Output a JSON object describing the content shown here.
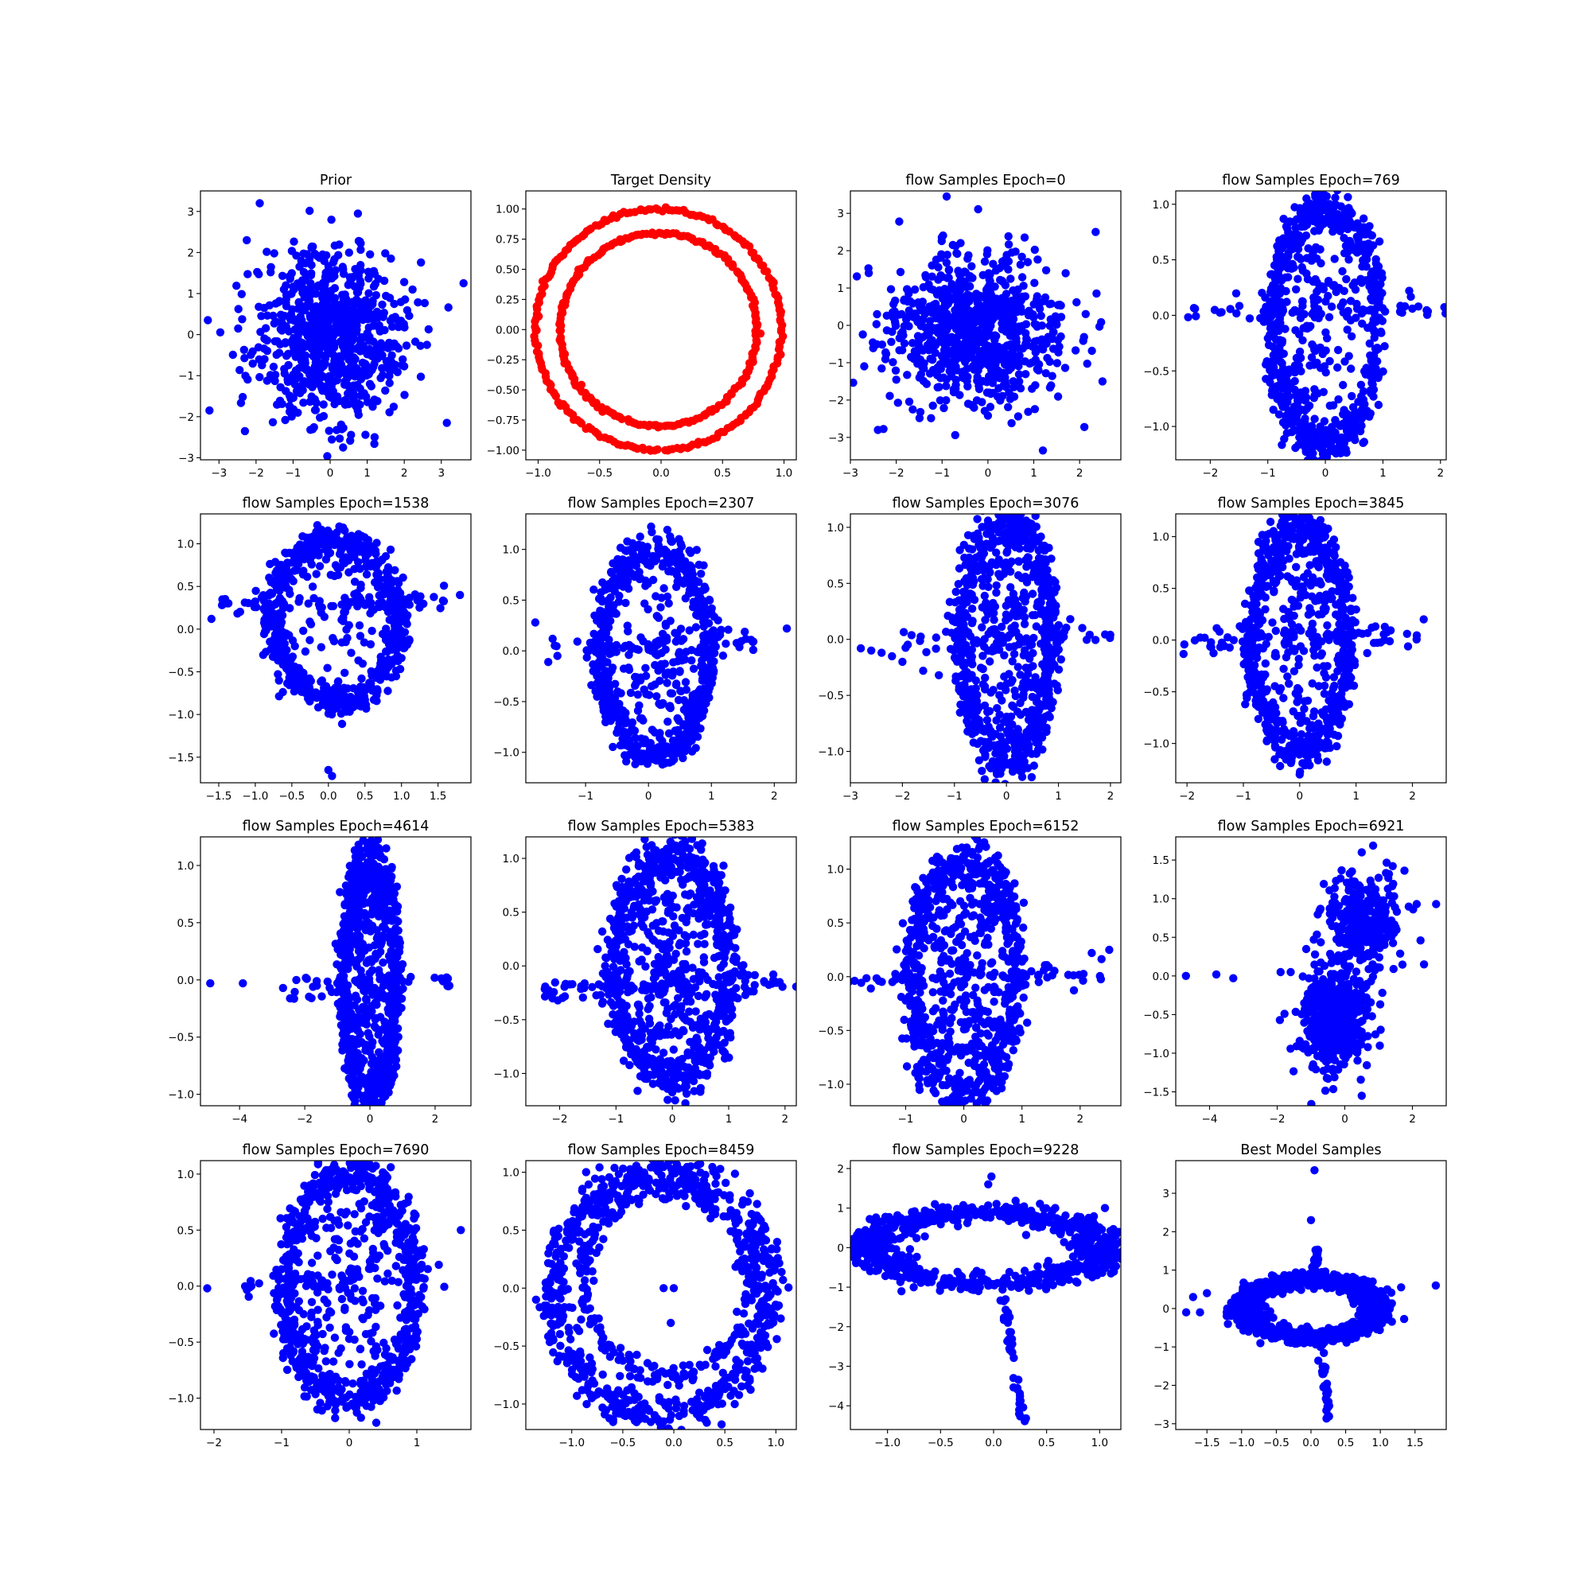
{
  "figure": {
    "point_colors": {
      "blue": "#0000ff",
      "red": "#ff0000"
    }
  },
  "chart_data": [
    {
      "type": "scatter",
      "title": "Prior",
      "color": "#0000ff",
      "xlim": [
        -3.5,
        3.8
      ],
      "ylim": [
        -3.05,
        3.5
      ],
      "xticks": [
        -3,
        -2,
        -1,
        0,
        1,
        2,
        3
      ],
      "yticks": [
        -3,
        -2,
        -1,
        0,
        1,
        2,
        3
      ],
      "distribution": {
        "kind": "gaussian",
        "n": 800,
        "cx": 0.0,
        "cy": 0.0,
        "sx": 1.0,
        "sy": 1.0
      },
      "points": [
        [
          -1.9,
          3.2
        ],
        [
          0.75,
          2.95
        ],
        [
          3.6,
          1.25
        ],
        [
          0.35,
          -2.75
        ],
        [
          3.15,
          -2.15
        ],
        [
          -2.3,
          -2.35
        ],
        [
          -3.3,
          0.35
        ],
        [
          -2.25,
          2.3
        ],
        [
          1.2,
          -2.5
        ]
      ]
    },
    {
      "type": "scatter",
      "title": "Target Density",
      "color": "#ff0000",
      "xlim": [
        -1.1,
        1.1
      ],
      "ylim": [
        -1.08,
        1.15
      ],
      "xticks": [
        -1.0,
        -0.5,
        0.0,
        0.5,
        1.0
      ],
      "yticks": [
        -1.0,
        -0.75,
        -0.5,
        -0.25,
        0.0,
        0.25,
        0.5,
        0.75,
        1.0
      ],
      "distribution": {
        "kind": "two-rings",
        "radii": [
          1.0,
          0.8
        ],
        "n_per_ring": 220,
        "center": [
          -0.02,
          0.0
        ]
      }
    },
    {
      "type": "scatter",
      "title": "flow Samples Epoch=0",
      "color": "#0000ff",
      "xlim": [
        -3.0,
        2.9
      ],
      "ylim": [
        -3.6,
        3.6
      ],
      "xticks": [
        -3,
        -2,
        -1,
        0,
        1,
        2
      ],
      "yticks": [
        -3,
        -2,
        -1,
        0,
        1,
        2,
        3
      ],
      "distribution": {
        "kind": "gaussian",
        "n": 800,
        "cx": -0.3,
        "cy": -0.15,
        "sx": 0.95,
        "sy": 1.0
      },
      "points": [
        [
          -0.9,
          3.45
        ],
        [
          1.2,
          -3.35
        ],
        [
          -2.6,
          1.4
        ],
        [
          2.35,
          2.5
        ],
        [
          -2.4,
          -2.8
        ],
        [
          2.5,
          -1.5
        ]
      ]
    },
    {
      "type": "scatter",
      "title": "flow Samples Epoch=769",
      "color": "#0000ff",
      "xlim": [
        -2.6,
        2.1
      ],
      "ylim": [
        -1.3,
        1.12
      ],
      "xticks": [
        -2,
        -1,
        0,
        1,
        2
      ],
      "yticks": [
        -1.0,
        -0.5,
        0.0,
        0.5,
        1.0
      ],
      "distribution": {
        "kind": "eye-ring",
        "cx": 0.0,
        "cy": -0.1,
        "rx": 0.9,
        "ry": 1.05,
        "spread": 0.1,
        "n": 650,
        "tilt": 0.0,
        "bar_half_width": 2.4,
        "bar_y": 0.05,
        "n_bar": 60,
        "n_inner": 120
      }
    },
    {
      "type": "scatter",
      "title": "flow Samples Epoch=1538",
      "color": "#0000ff",
      "xlim": [
        -1.75,
        1.95
      ],
      "ylim": [
        -1.8,
        1.35
      ],
      "xticks": [
        -1.5,
        -1.0,
        -0.5,
        0.0,
        0.5,
        1.0,
        1.5
      ],
      "yticks": [
        -1.5,
        -1.0,
        -0.5,
        0.0,
        0.5,
        1.0
      ],
      "distribution": {
        "kind": "eye-ring",
        "cx": 0.1,
        "cy": 0.1,
        "rx": 0.85,
        "ry": 0.95,
        "spread": 0.1,
        "n": 650,
        "tilt": 0.25,
        "bar_half_width": 1.6,
        "bar_y": 0.3,
        "n_bar": 80,
        "n_inner": 60
      },
      "points": [
        [
          0.0,
          -1.65
        ],
        [
          0.05,
          -1.72
        ],
        [
          1.8,
          0.4
        ],
        [
          -1.6,
          0.12
        ]
      ]
    },
    {
      "type": "scatter",
      "title": "flow Samples Epoch=2307",
      "color": "#0000ff",
      "xlim": [
        -1.95,
        2.35
      ],
      "ylim": [
        -1.3,
        1.35
      ],
      "xticks": [
        -1,
        0,
        1,
        2
      ],
      "yticks": [
        -1.0,
        -0.5,
        0.0,
        0.5,
        1.0
      ],
      "distribution": {
        "kind": "eye-ring",
        "cx": 0.1,
        "cy": 0.0,
        "rx": 0.85,
        "ry": 1.0,
        "spread": 0.1,
        "n": 650,
        "tilt": 0.0,
        "bar_half_width": 1.7,
        "bar_y": 0.05,
        "n_bar": 60,
        "n_inner": 100
      },
      "points": [
        [
          2.2,
          0.22
        ],
        [
          -1.8,
          0.28
        ]
      ]
    },
    {
      "type": "scatter",
      "title": "flow Samples Epoch=3076",
      "color": "#0000ff",
      "xlim": [
        -3.0,
        2.2
      ],
      "ylim": [
        -1.28,
        1.12
      ],
      "xticks": [
        -3,
        -2,
        -1,
        0,
        1,
        2
      ],
      "yticks": [
        -1.0,
        -0.5,
        0.0,
        0.5,
        1.0
      ],
      "distribution": {
        "kind": "eye-ring",
        "cx": 0.0,
        "cy": 0.0,
        "rx": 0.85,
        "ry": 1.05,
        "spread": 0.13,
        "n": 700,
        "tilt": 0.0,
        "bar_half_width": 2.0,
        "bar_y": 0.0,
        "n_bar": 50,
        "n_inner": 150
      },
      "points": [
        [
          -2.8,
          -0.08
        ],
        [
          -2.4,
          -0.12
        ],
        [
          -2.0,
          -0.2
        ],
        [
          -1.6,
          -0.28
        ],
        [
          -1.3,
          -0.32
        ],
        [
          -2.6,
          -0.1
        ],
        [
          -2.2,
          -0.15
        ]
      ]
    },
    {
      "type": "scatter",
      "title": "flow Samples Epoch=3845",
      "color": "#0000ff",
      "xlim": [
        -2.2,
        2.6
      ],
      "ylim": [
        -1.38,
        1.22
      ],
      "xticks": [
        -2,
        -1,
        0,
        1,
        2
      ],
      "yticks": [
        -1.0,
        -0.5,
        0.0,
        0.5,
        1.0
      ],
      "distribution": {
        "kind": "eye-ring",
        "cx": 0.0,
        "cy": 0.0,
        "rx": 0.85,
        "ry": 1.05,
        "spread": 0.11,
        "n": 650,
        "tilt": 0.0,
        "bar_half_width": 2.1,
        "bar_y": 0.0,
        "n_bar": 70,
        "n_inner": 120
      },
      "points": [
        [
          0.0,
          -1.3
        ],
        [
          2.2,
          0.2
        ]
      ]
    },
    {
      "type": "scatter",
      "title": "flow Samples Epoch=4614",
      "color": "#0000ff",
      "xlim": [
        -5.2,
        3.1
      ],
      "ylim": [
        -1.1,
        1.25
      ],
      "xticks": [
        -4,
        -2,
        0,
        2
      ],
      "yticks": [
        -1.0,
        -0.5,
        0.0,
        0.5,
        1.0
      ],
      "distribution": {
        "kind": "eye-ring",
        "cx": 0.0,
        "cy": 0.0,
        "rx": 0.8,
        "ry": 1.0,
        "spread": 0.14,
        "n": 700,
        "tilt": 0.0,
        "bar_half_width": 2.8,
        "bar_y": -0.05,
        "n_bar": 50,
        "n_inner": 150
      },
      "points": [
        [
          -4.9,
          -0.03
        ],
        [
          -3.9,
          -0.03
        ],
        [
          0.5,
          1.15
        ]
      ]
    },
    {
      "type": "scatter",
      "title": "flow Samples Epoch=5383",
      "color": "#0000ff",
      "xlim": [
        -2.6,
        2.2
      ],
      "ylim": [
        -1.3,
        1.2
      ],
      "xticks": [
        -2,
        -1,
        0,
        1,
        2
      ],
      "yticks": [
        -1.0,
        -0.5,
        0.0,
        0.5,
        1.0
      ],
      "distribution": {
        "kind": "eye-ring",
        "cx": 0.0,
        "cy": 0.0,
        "rx": 1.0,
        "ry": 1.0,
        "spread": 0.12,
        "n": 700,
        "tilt": 0.0,
        "bar_half_width": 2.3,
        "bar_y": -0.2,
        "n_bar": 70,
        "n_inner": 220
      },
      "points": [
        [
          0.05,
          -1.25
        ]
      ]
    },
    {
      "type": "scatter",
      "title": "flow Samples Epoch=6152",
      "color": "#0000ff",
      "xlim": [
        -1.95,
        2.7
      ],
      "ylim": [
        -1.2,
        1.3
      ],
      "xticks": [
        -1,
        0,
        1,
        2
      ],
      "yticks": [
        -1.0,
        -0.5,
        0.0,
        0.5,
        1.0
      ],
      "distribution": {
        "kind": "eye-ring",
        "cx": 0.0,
        "cy": 0.0,
        "rx": 0.9,
        "ry": 1.05,
        "spread": 0.12,
        "n": 700,
        "tilt": 0.0,
        "bar_half_width": 2.4,
        "bar_y": 0.0,
        "n_bar": 60,
        "n_inner": 200
      },
      "points": [
        [
          0.35,
          1.25
        ],
        [
          2.5,
          0.25
        ],
        [
          2.2,
          0.22
        ]
      ]
    },
    {
      "type": "scatter",
      "title": "flow Samples Epoch=6921",
      "color": "#0000ff",
      "xlim": [
        -5.0,
        3.0
      ],
      "ylim": [
        -1.68,
        1.8
      ],
      "xticks": [
        -4,
        -2,
        0,
        2
      ],
      "yticks": [
        -1.5,
        -1.0,
        -0.5,
        0.0,
        0.5,
        1.0,
        1.5
      ],
      "distribution": {
        "kind": "two-blobs",
        "n": 900,
        "upper": {
          "cx": 0.5,
          "cy": 0.7,
          "sx": 0.55,
          "sy": 0.3,
          "n": 300
        },
        "lower": {
          "cx": -0.3,
          "cy": -0.55,
          "sx": 0.45,
          "sy": 0.3,
          "n": 600
        }
      },
      "points": [
        [
          -4.7,
          0.0
        ],
        [
          -3.8,
          0.02
        ],
        [
          -3.3,
          -0.03
        ],
        [
          2.7,
          0.93
        ],
        [
          0.5,
          1.6
        ],
        [
          0.5,
          -1.55
        ],
        [
          -1.6,
          0.05
        ],
        [
          -1.9,
          0.05
        ]
      ]
    },
    {
      "type": "scatter",
      "title": "flow Samples Epoch=7690",
      "color": "#0000ff",
      "xlim": [
        -2.2,
        1.8
      ],
      "ylim": [
        -1.28,
        1.12
      ],
      "xticks": [
        -2,
        -1,
        0,
        1
      ],
      "yticks": [
        -1.0,
        -0.5,
        0.0,
        0.5,
        1.0
      ],
      "distribution": {
        "kind": "eye-ring",
        "cx": 0.0,
        "cy": 0.0,
        "rx": 0.95,
        "ry": 1.0,
        "spread": 0.1,
        "n": 650,
        "tilt": 0.0,
        "bar_half_width": 1.6,
        "bar_y": 0.05,
        "n_bar": 50,
        "n_inner": 150
      },
      "points": [
        [
          -2.1,
          -0.02
        ],
        [
          1.65,
          0.5
        ],
        [
          0.4,
          -1.22
        ]
      ]
    },
    {
      "type": "scatter",
      "title": "flow Samples Epoch=8459",
      "color": "#0000ff",
      "xlim": [
        -1.45,
        1.2
      ],
      "ylim": [
        -1.22,
        1.1
      ],
      "xticks": [
        -1.0,
        -0.5,
        0.0,
        0.5,
        1.0
      ],
      "yticks": [
        -1.0,
        -0.5,
        0.0,
        0.5,
        1.0
      ],
      "distribution": {
        "kind": "ring",
        "cx": -0.12,
        "cy": -0.05,
        "rx": 1.05,
        "ry": 1.05,
        "spread": 0.08,
        "n": 650,
        "inner_rx": 0.8,
        "inner_ry": 0.8,
        "n_inner_ring": 250
      },
      "points": [
        [
          -1.35,
          -0.1
        ],
        [
          -0.03,
          -0.3
        ],
        [
          0.0,
          0.0
        ],
        [
          -0.1,
          0.0
        ],
        [
          -0.1,
          -1.15
        ]
      ]
    },
    {
      "type": "scatter",
      "title": "flow Samples Epoch=9228",
      "color": "#0000ff",
      "xlim": [
        -1.35,
        1.2
      ],
      "ylim": [
        -4.6,
        2.2
      ],
      "xticks": [
        -1.0,
        -0.5,
        0.0,
        0.5,
        1.0
      ],
      "yticks": [
        -4,
        -3,
        -2,
        -1,
        0,
        1,
        2
      ],
      "distribution": {
        "kind": "flat-ring",
        "cx": -0.05,
        "cy": 0.0,
        "rx": 1.1,
        "ry": 0.9,
        "spread": 0.14,
        "n": 750,
        "tail": {
          "from": [
            0.1,
            -1.3
          ],
          "to": [
            0.28,
            -4.4
          ],
          "n": 40
        }
      },
      "points": [
        [
          -0.02,
          1.8
        ],
        [
          -0.05,
          1.6
        ],
        [
          1.05,
          1.0
        ],
        [
          -1.3,
          0.1
        ]
      ]
    },
    {
      "type": "scatter",
      "title": "Best Model Samples",
      "color": "#0000ff",
      "xlim": [
        -1.95,
        1.95
      ],
      "ylim": [
        -3.15,
        3.85
      ],
      "xticks": [
        -1.5,
        -1.0,
        -0.5,
        0.0,
        0.5,
        1.0,
        1.5
      ],
      "yticks": [
        -3,
        -2,
        -1,
        0,
        1,
        2,
        3
      ],
      "distribution": {
        "kind": "flat-ring",
        "cx": 0.0,
        "cy": 0.0,
        "rx": 0.95,
        "ry": 0.75,
        "spread": 0.12,
        "n": 1300,
        "tail": {
          "from": [
            0.15,
            -0.9
          ],
          "to": [
            0.25,
            -2.9
          ],
          "n": 30
        },
        "top_tail": {
          "from": [
            0.05,
            0.9
          ],
          "to": [
            0.08,
            1.6
          ],
          "n": 25
        }
      },
      "points": [
        [
          0.05,
          3.6
        ],
        [
          0.0,
          2.3
        ],
        [
          -1.8,
          -0.1
        ],
        [
          -1.6,
          -0.1
        ],
        [
          -1.5,
          0.4
        ],
        [
          -1.7,
          0.3
        ],
        [
          1.8,
          0.6
        ],
        [
          1.3,
          0.55
        ],
        [
          1.1,
          0.5
        ]
      ]
    }
  ]
}
